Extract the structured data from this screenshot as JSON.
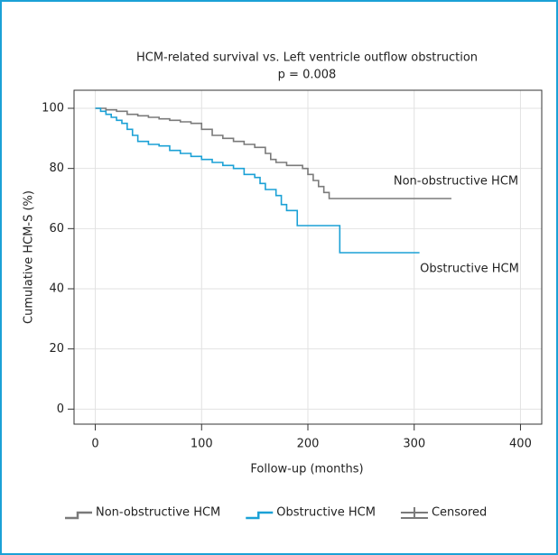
{
  "chart_data": {
    "type": "step",
    "title": "HCM-related survival vs. Left ventricle outflow obstruction",
    "subtitle": "p = 0.008",
    "x_label": "Follow-up (months)",
    "y_label": "Cumulative HCM-S (%)",
    "xlim": [
      -20,
      420
    ],
    "xticks": [
      0,
      100,
      200,
      300,
      400
    ],
    "ylim": [
      -5,
      106
    ],
    "yticks": [
      0,
      20,
      40,
      60,
      80,
      100
    ],
    "grid": true,
    "series": [
      {
        "name": "Non-obstructive HCM",
        "color": "#7a7a7a",
        "x": [
          0,
          10,
          20,
          30,
          40,
          50,
          60,
          70,
          80,
          90,
          100,
          110,
          120,
          130,
          140,
          150,
          160,
          165,
          170,
          180,
          195,
          200,
          205,
          210,
          215,
          220,
          335
        ],
        "values": [
          100,
          99.5,
          99,
          98,
          97.5,
          97,
          96.5,
          96,
          95.5,
          95,
          93,
          91,
          90,
          89,
          88,
          87,
          85,
          83,
          82,
          81,
          80,
          78,
          76,
          74,
          72,
          70,
          70
        ]
      },
      {
        "name": "Obstructive HCM",
        "color": "#1ba1d6",
        "x": [
          0,
          5,
          10,
          15,
          20,
          25,
          30,
          35,
          40,
          50,
          60,
          70,
          80,
          90,
          100,
          110,
          120,
          130,
          140,
          150,
          155,
          160,
          170,
          175,
          180,
          190,
          210,
          230,
          305
        ],
        "values": [
          100,
          99,
          98,
          97,
          96,
          95,
          93,
          91,
          89,
          88,
          87.5,
          86,
          85,
          84,
          83,
          82,
          81,
          80,
          78,
          77,
          75,
          73,
          71,
          68,
          66,
          61,
          61,
          52,
          52
        ]
      }
    ],
    "annotations": [
      "Non-obstructive HCM",
      "Obstructive HCM"
    ],
    "censored_label": "Censored",
    "censored_color": "#7a7a7a"
  }
}
